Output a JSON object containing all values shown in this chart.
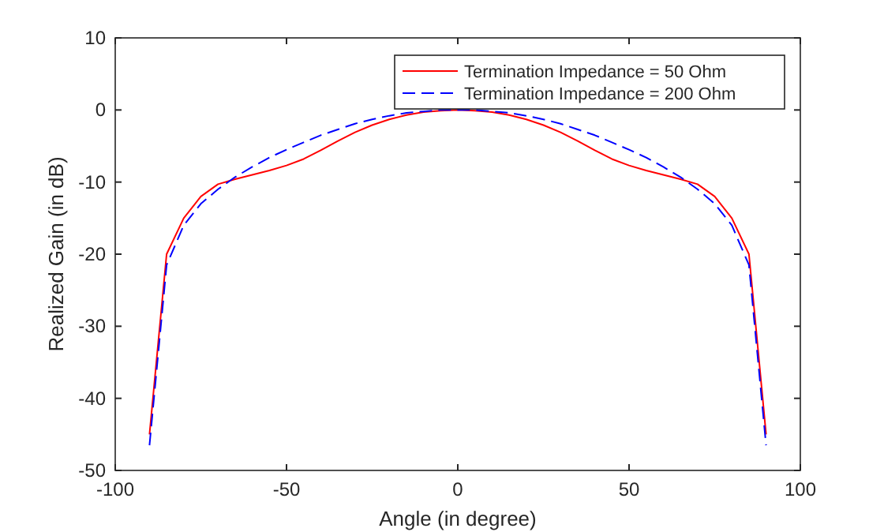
{
  "chart_data": {
    "type": "line",
    "xlabel": "Angle (in degree)",
    "ylabel": "Realized Gain (in dB)",
    "x": [
      -90,
      -85,
      -80,
      -75,
      -70,
      -65,
      -60,
      -55,
      -50,
      -45,
      -40,
      -35,
      -30,
      -25,
      -20,
      -15,
      -10,
      -5,
      0,
      5,
      10,
      15,
      20,
      25,
      30,
      35,
      40,
      45,
      50,
      55,
      60,
      65,
      70,
      75,
      80,
      85,
      90
    ],
    "series": [
      {
        "name": "Termination Impedance = 50 Ohm",
        "color": "#ff0000",
        "line_style": "solid",
        "values": [
          -45,
          -20,
          -15,
          -12,
          -10.3,
          -9.6,
          -9,
          -8.4,
          -7.7,
          -6.8,
          -5.6,
          -4.3,
          -3.1,
          -2.1,
          -1.3,
          -0.7,
          -0.3,
          -0.1,
          0,
          -0.1,
          -0.3,
          -0.7,
          -1.3,
          -2.1,
          -3.1,
          -4.3,
          -5.6,
          -6.8,
          -7.7,
          -8.4,
          -9,
          -9.6,
          -10.3,
          -12,
          -15,
          -20,
          -45
        ]
      },
      {
        "name": "Termination Impedance = 200 Ohm",
        "color": "#0000ff",
        "line_style": "dashed",
        "values": [
          -46.5,
          -21.5,
          -16,
          -13,
          -11,
          -9.3,
          -7.9,
          -6.6,
          -5.5,
          -4.5,
          -3.5,
          -2.7,
          -1.9,
          -1.3,
          -0.8,
          -0.4,
          -0.2,
          0,
          0,
          0,
          -0.2,
          -0.4,
          -0.8,
          -1.3,
          -1.9,
          -2.7,
          -3.5,
          -4.5,
          -5.5,
          -6.6,
          -7.9,
          -9.3,
          -11,
          -13,
          -16,
          -21.5,
          -46.5
        ]
      }
    ],
    "xlim": [
      -100,
      100
    ],
    "xticks": [
      -100,
      -50,
      0,
      50,
      100
    ],
    "ylim": [
      -50,
      10
    ],
    "yticks": [
      -50,
      -40,
      -30,
      -20,
      -10,
      0,
      10
    ],
    "legend": "top right",
    "marker": "none"
  }
}
